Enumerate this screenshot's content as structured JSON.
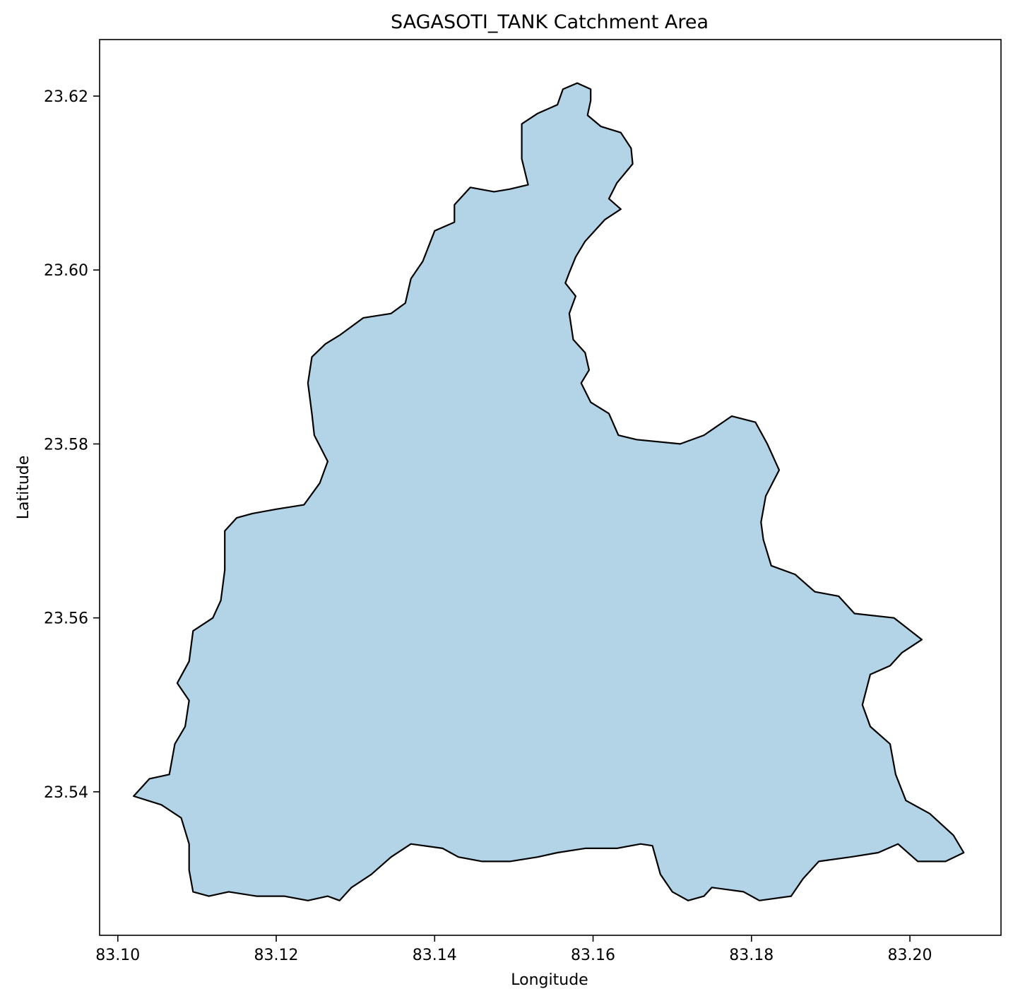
{
  "title": "SAGASOTI_TANK Catchment Area",
  "xlabel": "Longitude",
  "ylabel": "Latitude",
  "x_ticks": [
    "83.10",
    "83.12",
    "83.14",
    "83.16",
    "83.18",
    "83.20"
  ],
  "y_ticks": [
    "23.62",
    "23.60",
    "23.58",
    "23.56",
    "23.54"
  ],
  "colors": {
    "fill": "#b3d4e7",
    "stroke": "#000000"
  },
  "chart_data": {
    "type": "map",
    "title": "SAGASOTI_TANK Catchment Area",
    "xlabel": "Longitude",
    "ylabel": "Latitude",
    "xlim": [
      83.0977,
      83.2115
    ],
    "ylim": [
      23.5235,
      23.6265
    ],
    "grid": false,
    "legend": "none",
    "region": {
      "name": "SAGASOTI_TANK",
      "fill": "#b3d4e7",
      "boundary": [
        [
          83.158,
          23.6215
        ],
        [
          83.1597,
          23.6208
        ],
        [
          83.1597,
          23.6195
        ],
        [
          83.1593,
          23.6178
        ],
        [
          83.161,
          23.6165
        ],
        [
          83.1635,
          23.6158
        ],
        [
          83.1648,
          23.614
        ],
        [
          83.165,
          23.6122
        ],
        [
          83.163,
          23.61
        ],
        [
          83.162,
          23.6082
        ],
        [
          83.1635,
          23.607
        ],
        [
          83.1615,
          23.6058
        ],
        [
          83.159,
          23.6033
        ],
        [
          83.1578,
          23.6015
        ],
        [
          83.157,
          23.5997
        ],
        [
          83.1565,
          23.5985
        ],
        [
          83.1578,
          23.597
        ],
        [
          83.157,
          23.595
        ],
        [
          83.1575,
          23.592
        ],
        [
          83.159,
          23.5905
        ],
        [
          83.1595,
          23.5885
        ],
        [
          83.1585,
          23.587
        ],
        [
          83.1597,
          23.5848
        ],
        [
          83.162,
          23.5835
        ],
        [
          83.1632,
          23.581
        ],
        [
          83.1655,
          23.5805
        ],
        [
          83.171,
          23.58
        ],
        [
          83.174,
          23.581
        ],
        [
          83.1775,
          23.5832
        ],
        [
          83.1805,
          23.5825
        ],
        [
          83.182,
          23.58
        ],
        [
          83.1835,
          23.577
        ],
        [
          83.1818,
          23.574
        ],
        [
          83.1812,
          23.571
        ],
        [
          83.1815,
          23.569
        ],
        [
          83.1825,
          23.566
        ],
        [
          83.1855,
          23.565
        ],
        [
          83.188,
          23.563
        ],
        [
          83.191,
          23.5625
        ],
        [
          83.193,
          23.5605
        ],
        [
          83.198,
          23.56
        ],
        [
          83.2015,
          23.5575
        ],
        [
          83.199,
          23.556
        ],
        [
          83.1975,
          23.5545
        ],
        [
          83.195,
          23.5535
        ],
        [
          83.194,
          23.55
        ],
        [
          83.195,
          23.5475
        ],
        [
          83.1975,
          23.5455
        ],
        [
          83.1982,
          23.542
        ],
        [
          83.1995,
          23.539
        ],
        [
          83.2025,
          23.5375
        ],
        [
          83.2055,
          23.535
        ],
        [
          83.2068,
          23.533
        ],
        [
          83.2045,
          23.532
        ],
        [
          83.201,
          23.532
        ],
        [
          83.1985,
          23.534
        ],
        [
          83.196,
          23.533
        ],
        [
          83.1925,
          23.5325
        ],
        [
          83.1885,
          23.532
        ],
        [
          83.1865,
          23.53
        ],
        [
          83.185,
          23.528
        ],
        [
          83.181,
          23.5275
        ],
        [
          83.179,
          23.5285
        ],
        [
          83.175,
          23.529
        ],
        [
          83.174,
          23.528
        ],
        [
          83.172,
          23.5275
        ],
        [
          83.17,
          23.5285
        ],
        [
          83.1685,
          23.5305
        ],
        [
          83.1675,
          23.5338
        ],
        [
          83.166,
          23.534
        ],
        [
          83.163,
          23.5335
        ],
        [
          83.159,
          23.5335
        ],
        [
          83.1555,
          23.533
        ],
        [
          83.153,
          23.5325
        ],
        [
          83.1495,
          23.532
        ],
        [
          83.146,
          23.532
        ],
        [
          83.143,
          23.5325
        ],
        [
          83.141,
          23.5335
        ],
        [
          83.137,
          23.534
        ],
        [
          83.1345,
          23.5325
        ],
        [
          83.132,
          23.5305
        ],
        [
          83.1295,
          23.529
        ],
        [
          83.128,
          23.5275
        ],
        [
          83.1265,
          23.528
        ],
        [
          83.124,
          23.5275
        ],
        [
          83.121,
          23.528
        ],
        [
          83.1175,
          23.528
        ],
        [
          83.114,
          23.5285
        ],
        [
          83.1115,
          23.528
        ],
        [
          83.1095,
          23.5285
        ],
        [
          83.109,
          23.531
        ],
        [
          83.109,
          23.534
        ],
        [
          83.108,
          23.537
        ],
        [
          83.1055,
          23.5385
        ],
        [
          83.102,
          23.5395
        ],
        [
          83.104,
          23.5415
        ],
        [
          83.1065,
          23.542
        ],
        [
          83.1072,
          23.5455
        ],
        [
          83.1085,
          23.5475
        ],
        [
          83.109,
          23.5505
        ],
        [
          83.1075,
          23.5525
        ],
        [
          83.109,
          23.555
        ],
        [
          83.1095,
          23.5585
        ],
        [
          83.112,
          23.56
        ],
        [
          83.113,
          23.562
        ],
        [
          83.1135,
          23.5655
        ],
        [
          83.1135,
          23.57
        ],
        [
          83.115,
          23.5715
        ],
        [
          83.117,
          23.572
        ],
        [
          83.12,
          23.5725
        ],
        [
          83.1235,
          23.573
        ],
        [
          83.1255,
          23.5755
        ],
        [
          83.1265,
          23.578
        ],
        [
          83.1248,
          23.581
        ],
        [
          83.1245,
          23.5835
        ],
        [
          83.124,
          23.587
        ],
        [
          83.1245,
          23.59
        ],
        [
          83.1262,
          23.5915
        ],
        [
          83.128,
          23.5925
        ],
        [
          83.131,
          23.5945
        ],
        [
          83.1345,
          23.595
        ],
        [
          83.1363,
          23.5962
        ],
        [
          83.137,
          23.599
        ],
        [
          83.1385,
          23.601
        ],
        [
          83.14,
          23.6045
        ],
        [
          83.1425,
          23.6055
        ],
        [
          83.1425,
          23.6075
        ],
        [
          83.1445,
          23.6095
        ],
        [
          83.1475,
          23.609
        ],
        [
          83.1495,
          23.6093
        ],
        [
          83.1518,
          23.6098
        ],
        [
          83.151,
          23.6128
        ],
        [
          83.151,
          23.6168
        ],
        [
          83.153,
          23.618
        ],
        [
          83.1555,
          23.619
        ],
        [
          83.1562,
          23.6208
        ]
      ]
    }
  }
}
